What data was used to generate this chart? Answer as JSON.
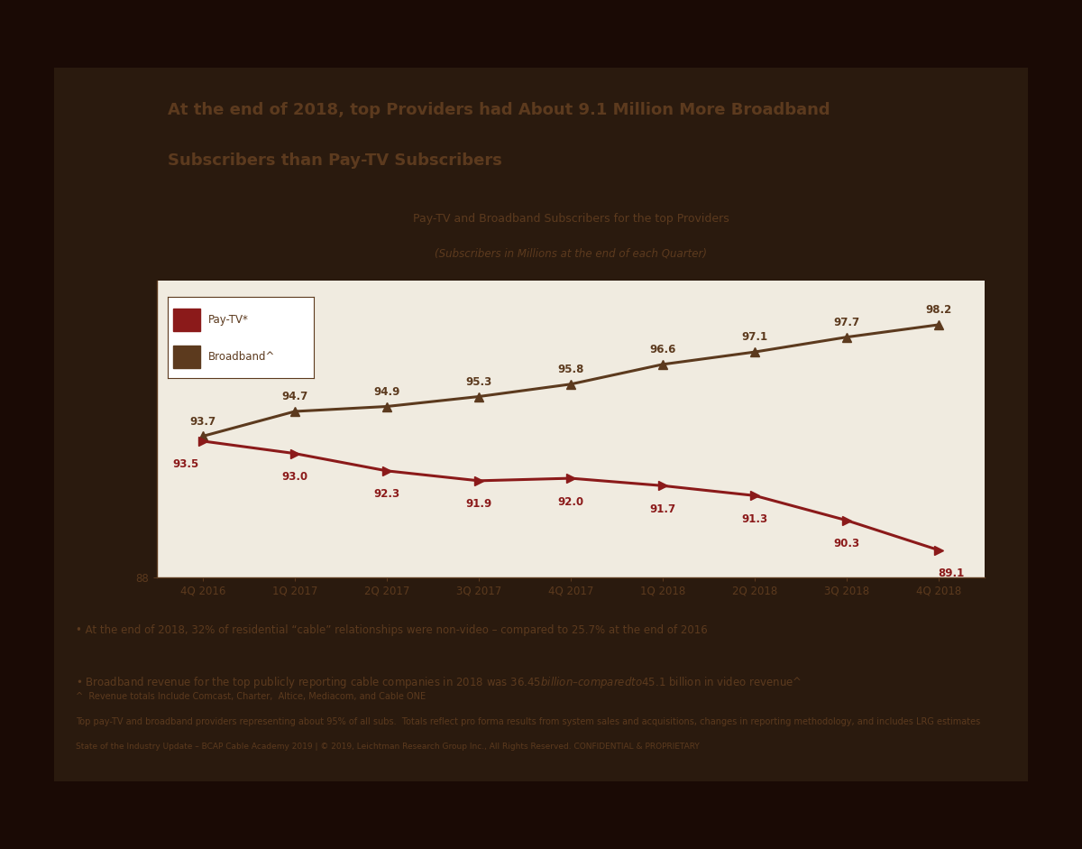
{
  "title_line1": "At the end of 2018, top Providers had About 9.1 Million More Broadband",
  "title_line2": "Subscribers than Pay-TV Subscribers",
  "chart_title": "Pay-TV and Broadband Subscribers for the top Providers",
  "chart_subtitle": "(Subscribers in Millions at the end of each Quarter)",
  "quarters": [
    "4Q 2016",
    "1Q 2017",
    "2Q 2017",
    "3Q 2017",
    "4Q 2017",
    "1Q 2018",
    "2Q 2018",
    "3Q 2018",
    "4Q 2018"
  ],
  "broadband_values": [
    93.7,
    94.7,
    94.9,
    95.3,
    95.8,
    96.6,
    97.1,
    97.7,
    98.2
  ],
  "paytv_values": [
    93.5,
    93.0,
    92.3,
    91.9,
    92.0,
    91.7,
    91.3,
    90.3,
    89.1
  ],
  "broadband_color": "#5C3A1E",
  "paytv_color": "#8B1A1A",
  "y_axis_min": 88,
  "y_axis_max": 100,
  "bullet1": "At the end of 2018, 32% of residential “cable” relationships were non-video – compared to 25.7% at the end of 2016",
  "bullet2": "Broadband revenue for the top publicly reporting cable companies in 2018 was $36.45 billion – compared to $45.1 billion in video revenue^",
  "footnote1": "^  Revenue totals Include Comcast, Charter,  Altice, Mediacom, and Cable ONE",
  "footnote2": "Top pay-TV and broadband providers representing about 95% of all subs.  Totals reflect pro forma results from system sales and acquisitions, changes in reporting methodology, and includes LRG estimates",
  "footnote3": "State of the Industry Update – BCAP Cable Academy 2019 | © 2019, Leichtman Research Group Inc., All Rights Reserved. CONFIDENTIAL & PROPRIETARY",
  "legend_paytv": "Pay-TV*",
  "legend_broadband": "Broadband^",
  "slide_bg": "#F0EBE0",
  "text_color": "#5C3A1E",
  "title_color": "#5C3A1E",
  "room_bg": "#2A1A0E",
  "room_top": "#4A2A15",
  "room_bottom": "#1A0A05"
}
